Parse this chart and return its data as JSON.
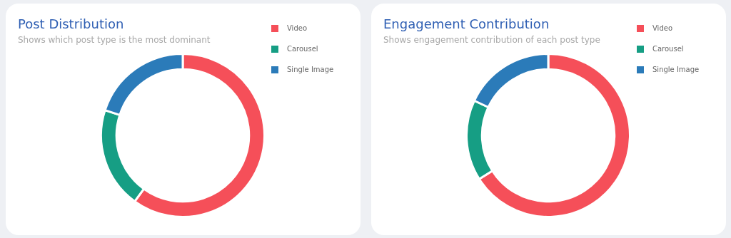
{
  "chart_data": [
    {
      "type": "donut",
      "title": "Post Distribution",
      "subtitle": "Shows which post type is the most dominant",
      "categories": [
        "Video",
        "Carousel",
        "Single Image"
      ],
      "values": [
        60,
        20,
        20
      ],
      "colors": [
        "#f54f59",
        "#169e84",
        "#2b7bb9"
      ],
      "legend": "top right"
    },
    {
      "type": "donut",
      "title": "Engagement Contribution",
      "subtitle": "Shows engagement contribution of each post type",
      "categories": [
        "Video",
        "Carousel",
        "Single Image"
      ],
      "values": [
        66,
        16,
        18
      ],
      "colors": [
        "#f54f59",
        "#169e84",
        "#2b7bb9"
      ],
      "legend": "top right"
    }
  ]
}
